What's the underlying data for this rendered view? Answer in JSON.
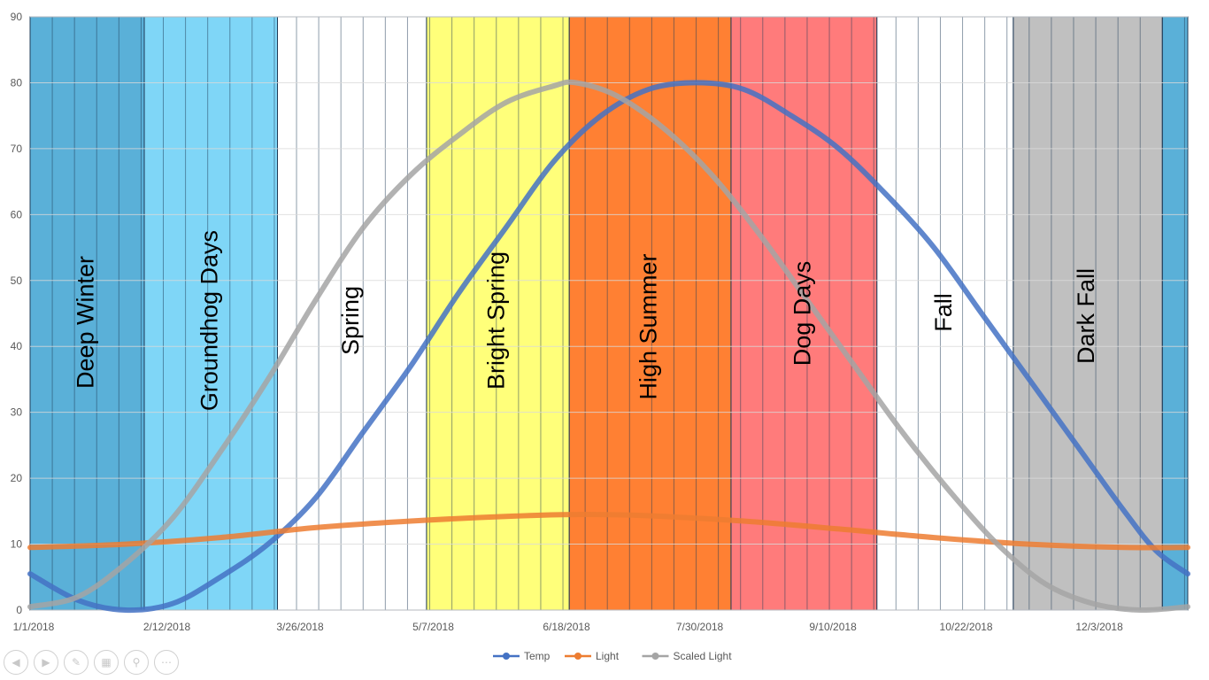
{
  "chart_data": {
    "type": "line",
    "title": "",
    "xlabel": "",
    "ylabel": "",
    "ylim": [
      0,
      90
    ],
    "y_ticks": [
      "0",
      "10",
      "20",
      "30",
      "40",
      "50",
      "60",
      "70",
      "80",
      "90"
    ],
    "x_range_days": [
      0,
      365
    ],
    "x_ticks": [
      {
        "label": "1/1/2018",
        "day": 0
      },
      {
        "label": "2/12/2018",
        "day": 42
      },
      {
        "label": "3/26/2018",
        "day": 84
      },
      {
        "label": "5/7/2018",
        "day": 126
      },
      {
        "label": "6/18/2018",
        "day": 168
      },
      {
        "label": "7/30/2018",
        "day": 210
      },
      {
        "label": "9/10/2018",
        "day": 252
      },
      {
        "label": "10/22/2018",
        "day": 294
      },
      {
        "label": "12/3/2018",
        "day": 336
      }
    ],
    "seasons": [
      {
        "name": "Deep Winter",
        "start_day": 0,
        "end_day": 36,
        "color": "#5ab0d8"
      },
      {
        "name": "Groundhog Days",
        "start_day": 36,
        "end_day": 78,
        "color": "#7fd6f7"
      },
      {
        "name": "Spring",
        "start_day": 78,
        "end_day": 125,
        "color": "#ffffff"
      },
      {
        "name": "Bright Spring",
        "start_day": 125,
        "end_day": 170,
        "color": "#ffff7a"
      },
      {
        "name": "High Summer",
        "start_day": 170,
        "end_day": 221,
        "color": "#ff8033"
      },
      {
        "name": "Dog Days",
        "start_day": 221,
        "end_day": 267,
        "color": "#ff7b7b"
      },
      {
        "name": "Fall",
        "start_day": 267,
        "end_day": 310,
        "color": "#ffffff"
      },
      {
        "name": "Dark Fall",
        "start_day": 310,
        "end_day": 357,
        "color": "#c0c0c0"
      },
      {
        "name": "",
        "start_day": 357,
        "end_day": 365,
        "color": "#5ab0d8"
      }
    ],
    "series": [
      {
        "name": "Temp",
        "color": "#4472c4",
        "points": [
          [
            0,
            5.5
          ],
          [
            15,
            1.5
          ],
          [
            30,
            0
          ],
          [
            45,
            1
          ],
          [
            60,
            5
          ],
          [
            75,
            10
          ],
          [
            90,
            17
          ],
          [
            105,
            27
          ],
          [
            120,
            37
          ],
          [
            135,
            48
          ],
          [
            150,
            58
          ],
          [
            165,
            68
          ],
          [
            180,
            75
          ],
          [
            195,
            79
          ],
          [
            210,
            80
          ],
          [
            225,
            79
          ],
          [
            240,
            75
          ],
          [
            255,
            70
          ],
          [
            270,
            63
          ],
          [
            285,
            55
          ],
          [
            300,
            45
          ],
          [
            315,
            35
          ],
          [
            330,
            25
          ],
          [
            345,
            15
          ],
          [
            355,
            9
          ],
          [
            365,
            5.5
          ]
        ]
      },
      {
        "name": "Light",
        "color": "#ed7d31",
        "points": [
          [
            0,
            9.5
          ],
          [
            30,
            10
          ],
          [
            60,
            11
          ],
          [
            90,
            12.5
          ],
          [
            120,
            13.5
          ],
          [
            150,
            14.2
          ],
          [
            172,
            14.5
          ],
          [
            195,
            14.3
          ],
          [
            225,
            13.5
          ],
          [
            255,
            12.3
          ],
          [
            285,
            11
          ],
          [
            315,
            10
          ],
          [
            345,
            9.5
          ],
          [
            365,
            9.5
          ]
        ]
      },
      {
        "name": "Scaled Light",
        "color": "#a5a5a5",
        "points": [
          [
            0,
            0.5
          ],
          [
            15,
            2
          ],
          [
            30,
            7
          ],
          [
            45,
            14
          ],
          [
            60,
            24
          ],
          [
            75,
            35
          ],
          [
            90,
            47
          ],
          [
            105,
            58
          ],
          [
            120,
            66
          ],
          [
            135,
            72
          ],
          [
            150,
            77
          ],
          [
            165,
            79.5
          ],
          [
            172,
            80
          ],
          [
            185,
            78
          ],
          [
            200,
            73
          ],
          [
            215,
            66
          ],
          [
            230,
            57
          ],
          [
            245,
            47
          ],
          [
            260,
            37
          ],
          [
            275,
            27
          ],
          [
            290,
            18
          ],
          [
            305,
            10
          ],
          [
            320,
            4
          ],
          [
            335,
            1
          ],
          [
            350,
            0
          ],
          [
            365,
            0.5
          ]
        ]
      }
    ]
  },
  "legend": [
    {
      "label": "Temp",
      "color": "#4472c4"
    },
    {
      "label": "Light",
      "color": "#ed7d31"
    },
    {
      "label": "Scaled Light",
      "color": "#a5a5a5"
    }
  ],
  "nav_icons": [
    "back-icon",
    "forward-icon",
    "pen-icon",
    "slides-icon",
    "zoom-icon",
    "more-icon"
  ]
}
